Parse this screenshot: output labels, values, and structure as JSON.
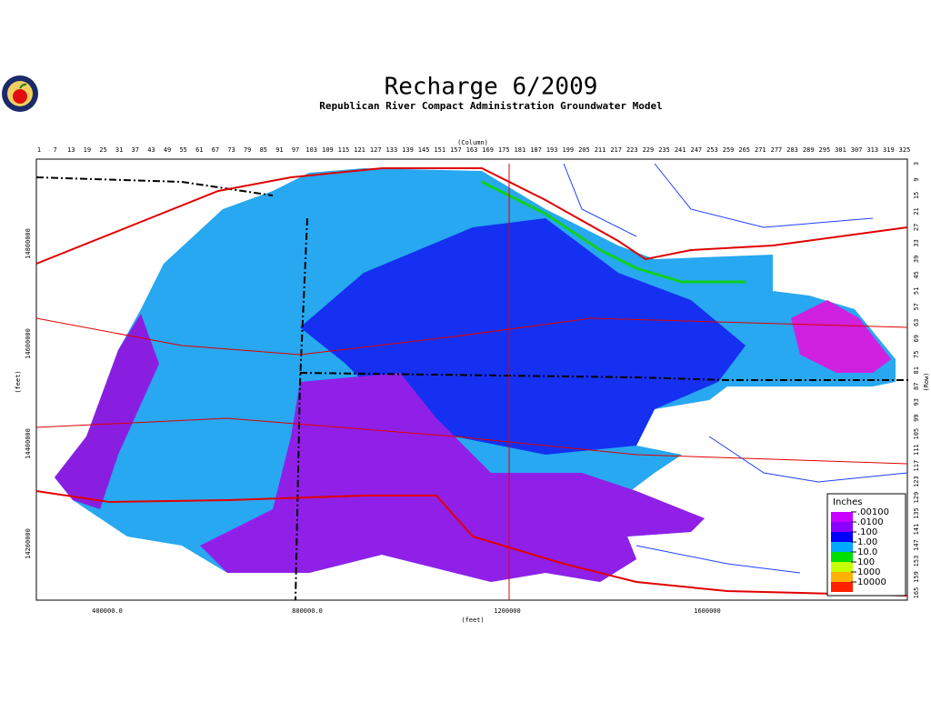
{
  "header": {
    "title": "Recharge 6/2009",
    "subtitle": "Republican River Compact Administration Groundwater Model"
  },
  "columns": {
    "label": "(Column)",
    "ticks": [
      1,
      7,
      13,
      19,
      25,
      31,
      37,
      43,
      49,
      55,
      61,
      67,
      73,
      79,
      85,
      91,
      97,
      103,
      109,
      115,
      121,
      127,
      133,
      139,
      145,
      151,
      157,
      163,
      169,
      175,
      181,
      187,
      193,
      199,
      205,
      211,
      217,
      223,
      229,
      235,
      241,
      247,
      253,
      259,
      265,
      271,
      277,
      283,
      289,
      295,
      301,
      307,
      313,
      319,
      325
    ]
  },
  "rows": {
    "label": "(Row)",
    "ticks": [
      3,
      9,
      15,
      21,
      27,
      33,
      39,
      45,
      51,
      57,
      63,
      69,
      75,
      81,
      87,
      93,
      99,
      105,
      111,
      117,
      123,
      129,
      135,
      141,
      147,
      153,
      159,
      165
    ]
  },
  "x_axis": {
    "label": "(feet)",
    "ticks": [
      "400000.0",
      "800000.0",
      "1200000",
      "1600000"
    ]
  },
  "y_axis": {
    "label": "(feet)",
    "ticks": [
      "14800000",
      "14600000",
      "14400000",
      "14200000"
    ]
  },
  "legend": {
    "title": "Inches",
    "labels": [
      ".00100",
      ".0100",
      ".100",
      "1.00",
      "10.0",
      "100",
      "1000",
      "10000"
    ],
    "colors": [
      "#c800ff",
      "#8a00ff",
      "#0000ff",
      "#00a8ff",
      "#00e000",
      "#c8ff00",
      "#ffb000",
      "#ff2000"
    ]
  }
}
